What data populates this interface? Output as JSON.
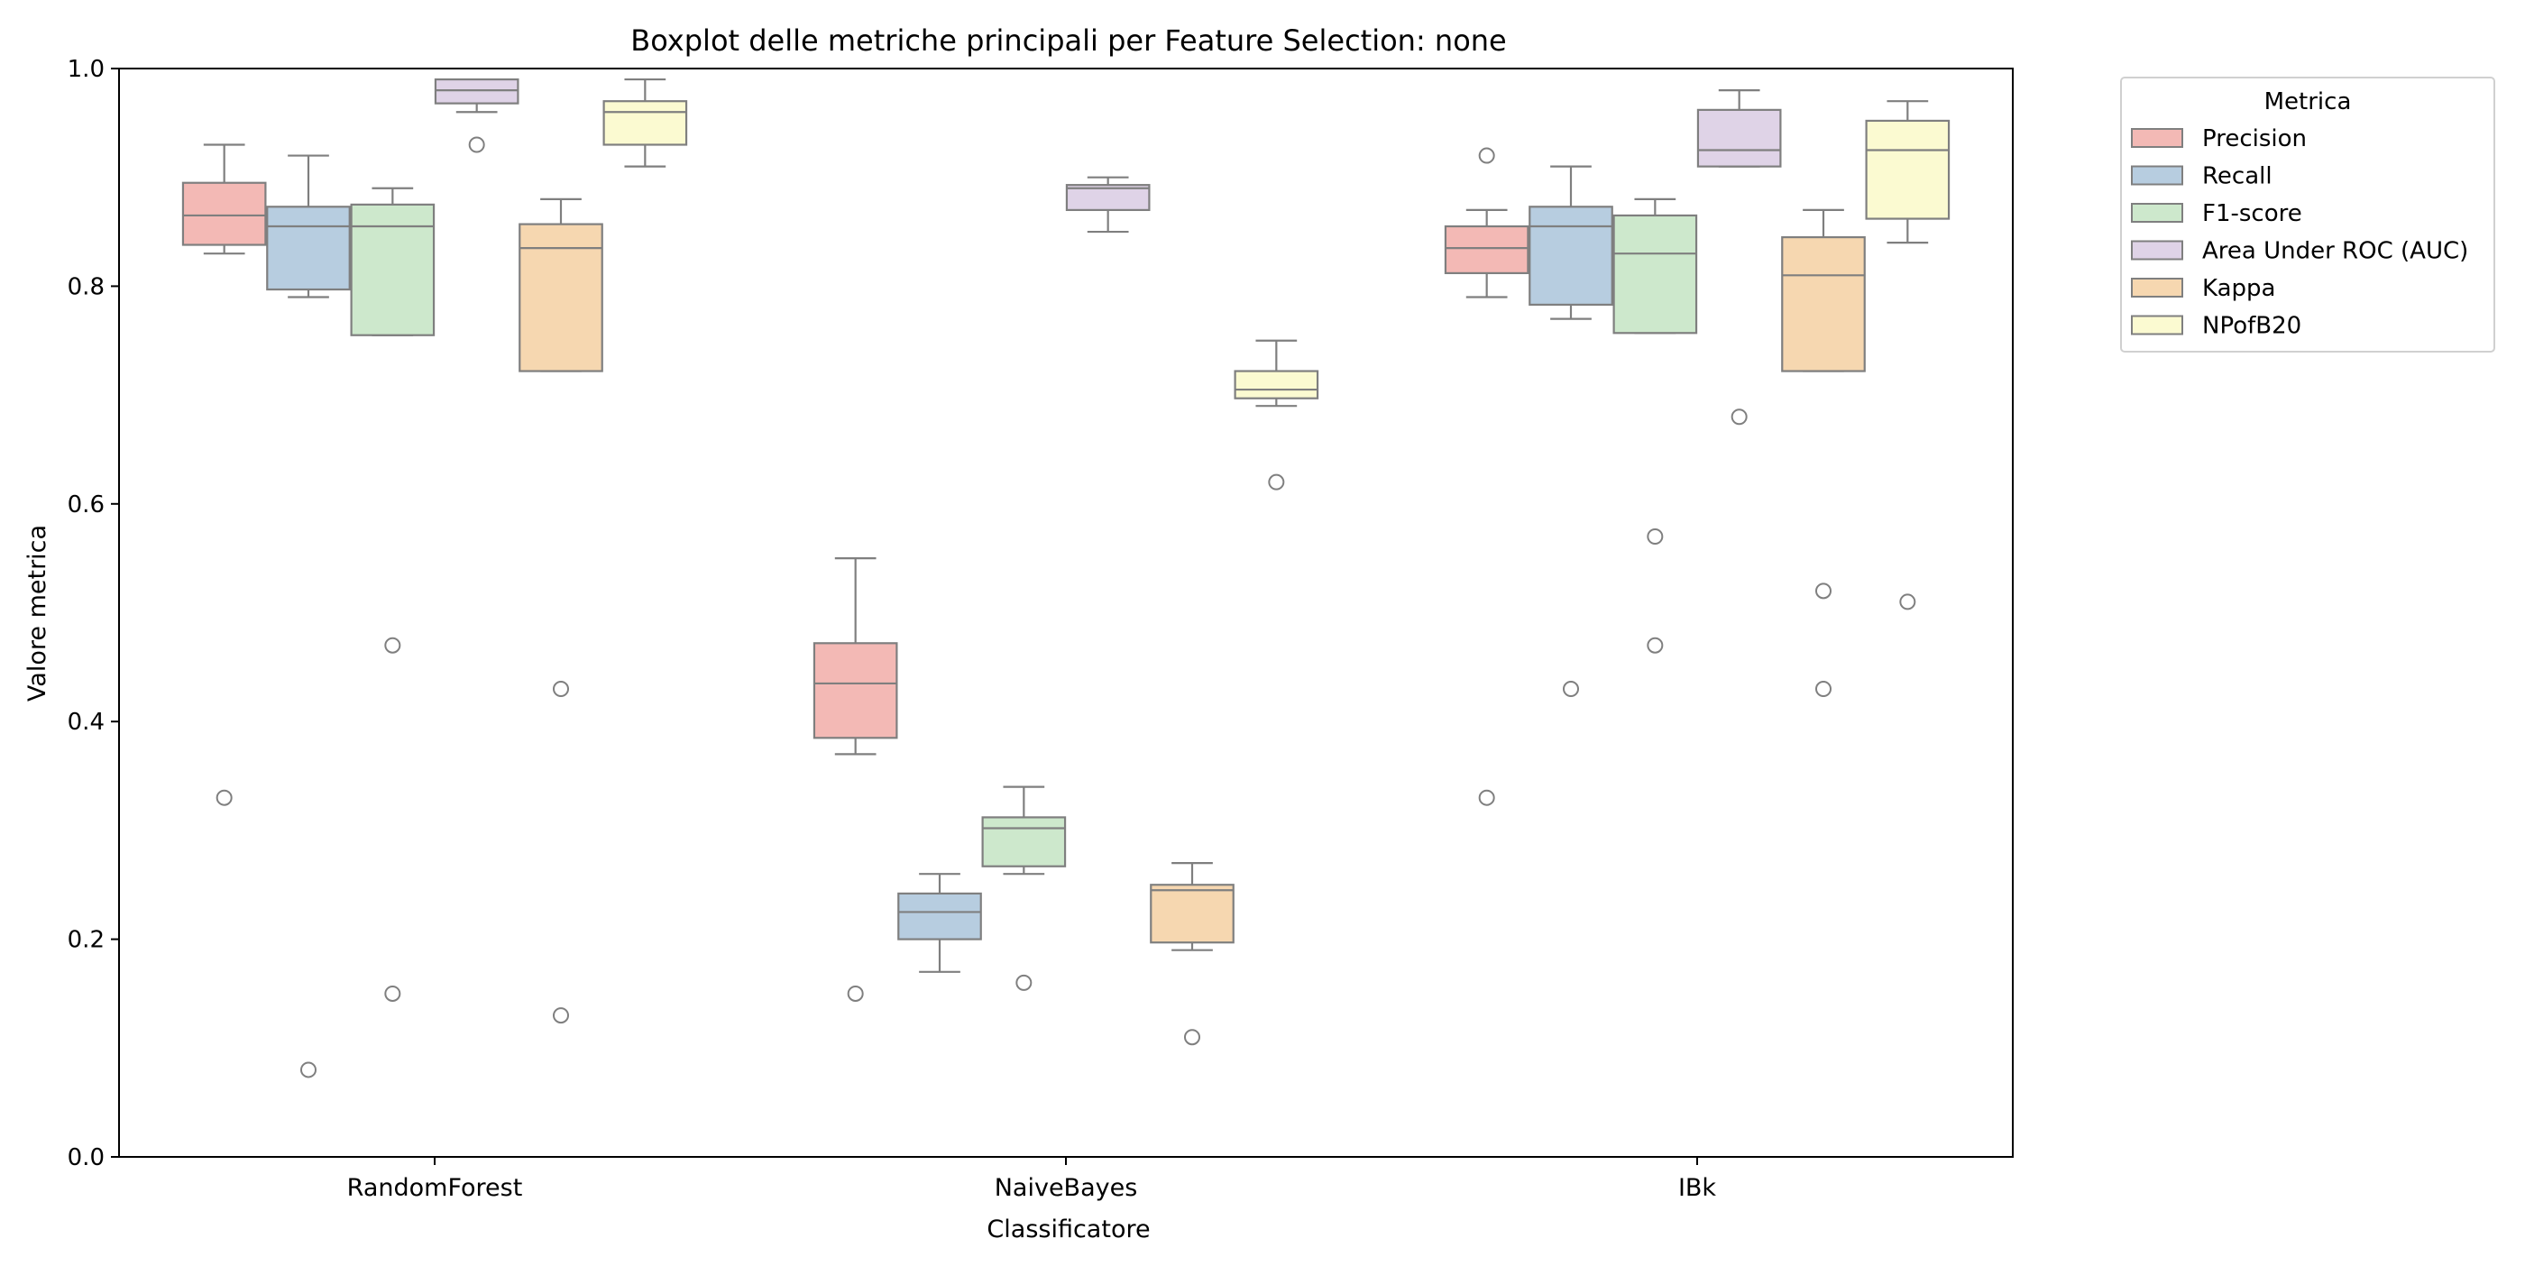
{
  "chart_data": {
    "type": "boxplot",
    "title": "Boxplot delle metriche principali per Feature Selection: none",
    "xlabel": "Classificatore",
    "ylabel": "Valore metrica",
    "ylim": [
      0.0,
      1.0
    ],
    "yticks": [
      0.0,
      0.2,
      0.4,
      0.6,
      0.8,
      1.0
    ],
    "ytick_labels": [
      "0.0",
      "0.2",
      "0.4",
      "0.6",
      "0.8",
      "1.0"
    ],
    "grid": false,
    "categories": [
      "RandomForest",
      "NaiveBayes",
      "IBk"
    ],
    "legend": {
      "title": "Metrica",
      "placement": "outside-top-right"
    },
    "series": [
      {
        "name": "Precision",
        "color": "#f3b9b5",
        "boxes": [
          {
            "whisker_low": 0.83,
            "q1": 0.838,
            "median": 0.865,
            "q3": 0.895,
            "whisker_high": 0.93,
            "outliers": [
              0.33
            ]
          },
          {
            "whisker_low": 0.37,
            "q1": 0.385,
            "median": 0.435,
            "q3": 0.472,
            "whisker_high": 0.55,
            "outliers": [
              0.15
            ]
          },
          {
            "whisker_low": 0.79,
            "q1": 0.812,
            "median": 0.835,
            "q3": 0.855,
            "whisker_high": 0.87,
            "outliers": [
              0.92,
              0.33
            ]
          }
        ]
      },
      {
        "name": "Recall",
        "color": "#b7cde0",
        "boxes": [
          {
            "whisker_low": 0.79,
            "q1": 0.797,
            "median": 0.855,
            "q3": 0.873,
            "whisker_high": 0.92,
            "outliers": [
              0.08
            ]
          },
          {
            "whisker_low": 0.17,
            "q1": 0.2,
            "median": 0.225,
            "q3": 0.242,
            "whisker_high": 0.26,
            "outliers": []
          },
          {
            "whisker_low": 0.77,
            "q1": 0.783,
            "median": 0.855,
            "q3": 0.873,
            "whisker_high": 0.91,
            "outliers": [
              0.43
            ]
          }
        ]
      },
      {
        "name": "F1-score",
        "color": "#cde8cc",
        "boxes": [
          {
            "whisker_low": 0.755,
            "q1": 0.755,
            "median": 0.855,
            "q3": 0.875,
            "whisker_high": 0.89,
            "outliers": [
              0.47,
              0.15
            ]
          },
          {
            "whisker_low": 0.26,
            "q1": 0.267,
            "median": 0.302,
            "q3": 0.312,
            "whisker_high": 0.34,
            "outliers": [
              0.16
            ]
          },
          {
            "whisker_low": 0.757,
            "q1": 0.757,
            "median": 0.83,
            "q3": 0.865,
            "whisker_high": 0.88,
            "outliers": [
              0.57,
              0.47
            ]
          }
        ]
      },
      {
        "name": "Area Under ROC (AUC)",
        "color": "#dfd3e7",
        "boxes": [
          {
            "whisker_low": 0.96,
            "q1": 0.968,
            "median": 0.98,
            "q3": 0.99,
            "whisker_high": 0.99,
            "outliers": [
              0.93
            ]
          },
          {
            "whisker_low": 0.85,
            "q1": 0.87,
            "median": 0.89,
            "q3": 0.893,
            "whisker_high": 0.9,
            "outliers": []
          },
          {
            "whisker_low": 0.91,
            "q1": 0.91,
            "median": 0.925,
            "q3": 0.962,
            "whisker_high": 0.98,
            "outliers": [
              0.68
            ]
          }
        ]
      },
      {
        "name": "Kappa",
        "color": "#f6d7b0",
        "boxes": [
          {
            "whisker_low": 0.722,
            "q1": 0.722,
            "median": 0.835,
            "q3": 0.857,
            "whisker_high": 0.88,
            "outliers": [
              0.43,
              0.13
            ]
          },
          {
            "whisker_low": 0.19,
            "q1": 0.197,
            "median": 0.245,
            "q3": 0.25,
            "whisker_high": 0.27,
            "outliers": [
              0.11
            ]
          },
          {
            "whisker_low": 0.722,
            "q1": 0.722,
            "median": 0.81,
            "q3": 0.845,
            "whisker_high": 0.87,
            "outliers": [
              0.52,
              0.43
            ]
          }
        ]
      },
      {
        "name": "NPofB20",
        "color": "#fbfad1",
        "boxes": [
          {
            "whisker_low": 0.91,
            "q1": 0.93,
            "median": 0.96,
            "q3": 0.97,
            "whisker_high": 0.99,
            "outliers": []
          },
          {
            "whisker_low": 0.69,
            "q1": 0.697,
            "median": 0.705,
            "q3": 0.722,
            "whisker_high": 0.75,
            "outliers": [
              0.62
            ]
          },
          {
            "whisker_low": 0.84,
            "q1": 0.862,
            "median": 0.925,
            "q3": 0.952,
            "whisker_high": 0.97,
            "outliers": [
              0.51
            ]
          }
        ]
      }
    ]
  }
}
